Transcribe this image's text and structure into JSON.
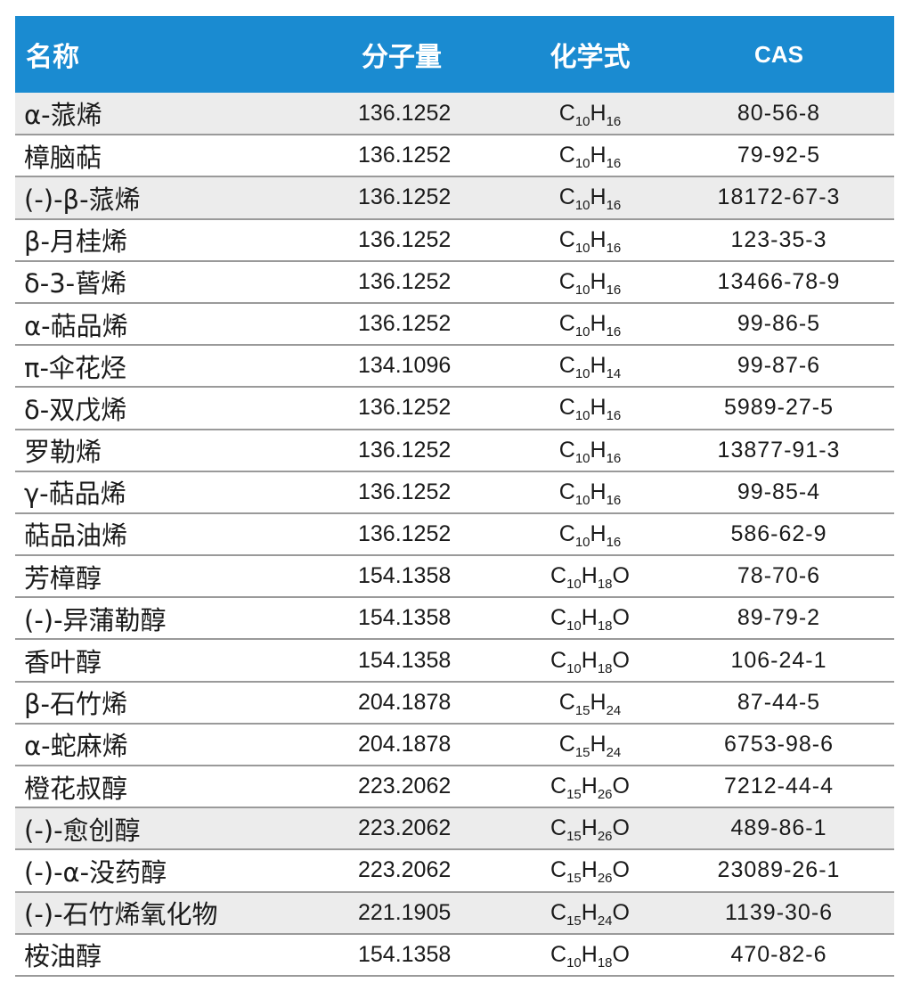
{
  "table": {
    "headers": {
      "name": "名称",
      "mw": "分子量",
      "formula": "化学式",
      "cas": "CAS"
    },
    "rows": [
      {
        "name": "α-蒎烯",
        "mw": "136.1252",
        "formula": [
          {
            "t": "C"
          },
          {
            "s": "10"
          },
          {
            "t": "H"
          },
          {
            "s": "16"
          }
        ],
        "cas": "80-56-8"
      },
      {
        "name": "樟脑萜",
        "mw": "136.1252",
        "formula": [
          {
            "t": "C"
          },
          {
            "s": "10"
          },
          {
            "t": "H"
          },
          {
            "s": "16"
          }
        ],
        "cas": "79-92-5"
      },
      {
        "name": "(-)-β-蒎烯",
        "mw": "136.1252",
        "formula": [
          {
            "t": "C"
          },
          {
            "s": "10"
          },
          {
            "t": "H"
          },
          {
            "s": "16"
          }
        ],
        "cas": "18172-67-3"
      },
      {
        "name": "β-月桂烯",
        "mw": "136.1252",
        "formula": [
          {
            "t": "C"
          },
          {
            "s": "10"
          },
          {
            "t": "H"
          },
          {
            "s": "16"
          }
        ],
        "cas": "123-35-3"
      },
      {
        "name": "δ-3-蒈烯",
        "mw": "136.1252",
        "formula": [
          {
            "t": "C"
          },
          {
            "s": "10"
          },
          {
            "t": "H"
          },
          {
            "s": "16"
          }
        ],
        "cas": "13466-78-9"
      },
      {
        "name": "α-萜品烯",
        "mw": "136.1252",
        "formula": [
          {
            "t": "C"
          },
          {
            "s": "10"
          },
          {
            "t": "H"
          },
          {
            "s": "16"
          }
        ],
        "cas": "99-86-5"
      },
      {
        "name": "π-伞花烃",
        "mw": "134.1096",
        "formula": [
          {
            "t": "C"
          },
          {
            "s": "10"
          },
          {
            "t": "H"
          },
          {
            "s": "14"
          }
        ],
        "cas": "99-87-6"
      },
      {
        "name": "δ-双戊烯",
        "mw": "136.1252",
        "formula": [
          {
            "t": "C"
          },
          {
            "s": "10"
          },
          {
            "t": "H"
          },
          {
            "s": "16"
          }
        ],
        "cas": "5989-27-5"
      },
      {
        "name": "罗勒烯",
        "mw": "136.1252",
        "formula": [
          {
            "t": "C"
          },
          {
            "s": "10"
          },
          {
            "t": "H"
          },
          {
            "s": "16"
          }
        ],
        "cas": "13877-91-3"
      },
      {
        "name": "γ-萜品烯",
        "mw": "136.1252",
        "formula": [
          {
            "t": "C"
          },
          {
            "s": "10"
          },
          {
            "t": "H"
          },
          {
            "s": "16"
          }
        ],
        "cas": "99-85-4"
      },
      {
        "name": "萜品油烯",
        "mw": "136.1252",
        "formula": [
          {
            "t": "C"
          },
          {
            "s": "10"
          },
          {
            "t": "H"
          },
          {
            "s": "16"
          }
        ],
        "cas": "586-62-9"
      },
      {
        "name": "芳樟醇",
        "mw": "154.1358",
        "formula": [
          {
            "t": "C"
          },
          {
            "s": "10"
          },
          {
            "t": "H"
          },
          {
            "s": "18"
          },
          {
            "t": "O"
          }
        ],
        "cas": "78-70-6"
      },
      {
        "name": "(-)-异蒲勒醇",
        "mw": "154.1358",
        "formula": [
          {
            "t": "C"
          },
          {
            "s": "10"
          },
          {
            "t": "H"
          },
          {
            "s": "18"
          },
          {
            "t": "O"
          }
        ],
        "cas": "89-79-2"
      },
      {
        "name": "香叶醇",
        "mw": "154.1358",
        "formula": [
          {
            "t": "C"
          },
          {
            "s": "10"
          },
          {
            "t": "H"
          },
          {
            "s": "18"
          },
          {
            "t": "O"
          }
        ],
        "cas": "106-24-1"
      },
      {
        "name": "β-石竹烯",
        "mw": "204.1878",
        "formula": [
          {
            "t": "C"
          },
          {
            "s": "15"
          },
          {
            "t": "H"
          },
          {
            "s": "24"
          }
        ],
        "cas": "87-44-5"
      },
      {
        "name": "α-蛇麻烯",
        "mw": "204.1878",
        "formula": [
          {
            "t": "C"
          },
          {
            "s": "15"
          },
          {
            "t": "H"
          },
          {
            "s": "24"
          }
        ],
        "cas": "6753-98-6"
      },
      {
        "name": "橙花叔醇",
        "mw": "223.2062",
        "formula": [
          {
            "t": "C"
          },
          {
            "s": "15"
          },
          {
            "t": "H"
          },
          {
            "s": "26"
          },
          {
            "t": "O"
          }
        ],
        "cas": "7212-44-4"
      },
      {
        "name": "(-)-愈创醇",
        "mw": "223.2062",
        "formula": [
          {
            "t": "C"
          },
          {
            "s": "15"
          },
          {
            "t": "H"
          },
          {
            "s": "26"
          },
          {
            "t": "O"
          }
        ],
        "cas": "489-86-1"
      },
      {
        "name": "(-)-α-没药醇",
        "mw": "223.2062",
        "formula": [
          {
            "t": "C"
          },
          {
            "s": "15"
          },
          {
            "t": "H"
          },
          {
            "s": "26"
          },
          {
            "t": "O"
          }
        ],
        "cas": "23089-26-1"
      },
      {
        "name": "(-)-石竹烯氧化物",
        "mw": "221.1905",
        "formula": [
          {
            "t": "C"
          },
          {
            "s": "15"
          },
          {
            "t": "H"
          },
          {
            "s": "24"
          },
          {
            "t": "O"
          }
        ],
        "cas": "1139-30-6"
      },
      {
        "name": "桉油醇",
        "mw": "154.1358",
        "formula": [
          {
            "t": "C"
          },
          {
            "s": "10"
          },
          {
            "t": "H"
          },
          {
            "s": "18"
          },
          {
            "t": "O"
          }
        ],
        "cas": "470-82-6"
      }
    ],
    "shaded_rows": [
      0,
      2,
      17,
      19
    ],
    "colors": {
      "header_bg": "#1a8bd1",
      "header_text": "#ffffff",
      "row_shade": "#ececec",
      "rule": "#9a9a9a"
    }
  }
}
